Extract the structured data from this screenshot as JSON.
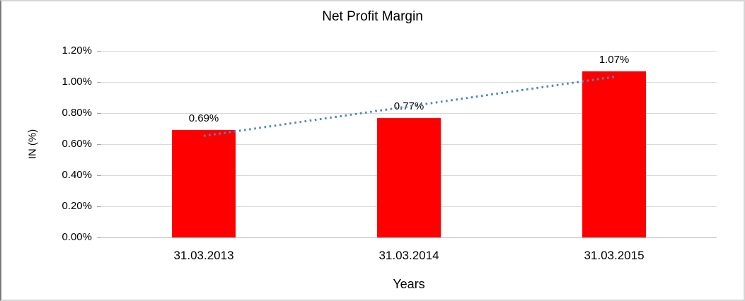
{
  "window": {
    "background": "#ffffff",
    "frame_border_color": "#d6d6d6",
    "frame_border_left_color": "#7a7a7a"
  },
  "chart_data": {
    "type": "bar",
    "title": "Net Profit Margin",
    "xlabel": "Years",
    "ylabel": "IN (%)",
    "categories": [
      "31.03.2013",
      "31.03.2014",
      "31.03.2015"
    ],
    "values": [
      0.69,
      0.77,
      1.07
    ],
    "data_labels": [
      "0.69%",
      "0.77%",
      "1.07%"
    ],
    "ylim": [
      0,
      1.2
    ],
    "yticks": [
      0.0,
      0.2,
      0.4,
      0.6,
      0.8,
      1.0,
      1.2
    ],
    "ytick_labels": [
      "0.00%",
      "0.20%",
      "0.40%",
      "0.60%",
      "0.80%",
      "1.00%",
      "1.20%"
    ],
    "grid": "horizontal",
    "legend": "none",
    "bar_color": "#ff0000",
    "gridline_color": "#d9d9d9",
    "axis_line_color": "#bfbfbf",
    "label_color": "#000000",
    "trendline": {
      "type": "linear",
      "style": "dotted",
      "color": "#4f86c6",
      "start_value": 0.653,
      "end_value": 1.033
    }
  }
}
